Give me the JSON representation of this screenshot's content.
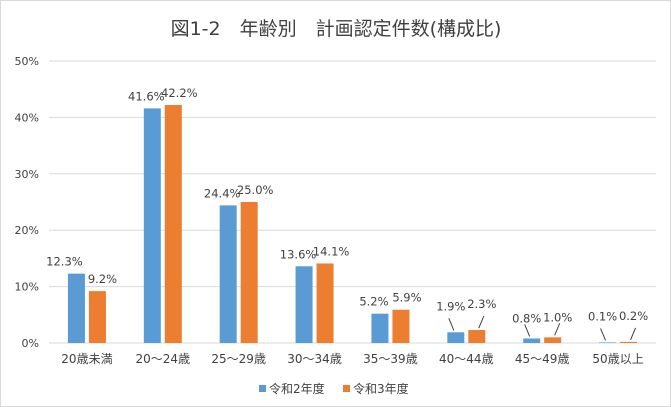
{
  "chart_data": {
    "type": "bar",
    "title": "図1-2　年齢別　計画認定件数(構成比)",
    "categories": [
      "20歳未満",
      "20～24歳",
      "25～29歳",
      "30～34歳",
      "35～39歳",
      "40～44歳",
      "45～49歳",
      "50歳以上"
    ],
    "series": [
      {
        "name": "令和2年度",
        "color": "#5B9BD5",
        "values": [
          12.3,
          41.6,
          24.4,
          13.6,
          5.2,
          1.9,
          0.8,
          0.1
        ]
      },
      {
        "name": "令和3年度",
        "color": "#ED7D31",
        "values": [
          9.2,
          42.2,
          25.0,
          14.1,
          5.9,
          2.3,
          1.0,
          0.2
        ]
      }
    ],
    "ylim": [
      0,
      50
    ],
    "yticks": [
      0,
      10,
      20,
      30,
      40,
      50
    ],
    "ytick_labels": [
      "0%",
      "10%",
      "20%",
      "30%",
      "40%",
      "50%"
    ],
    "value_format": "%",
    "grid": true,
    "legend": "bottom",
    "xlabel": "",
    "ylabel": ""
  }
}
